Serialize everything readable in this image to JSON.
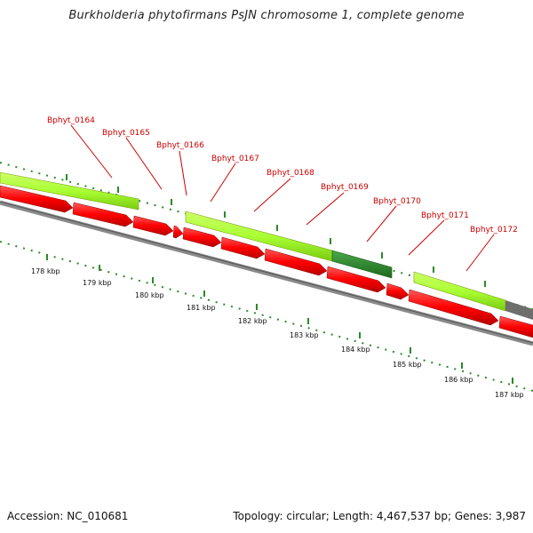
{
  "title": "Burkholderia phytofirmans PsJN chromosome 1, complete genome",
  "footer": {
    "accession_label": "Accession: NC_010681",
    "topology_label": "Topology: circular; Length: 4,467,537 bp; Genes: 3,987"
  },
  "colors": {
    "cds_feature": "#ff0000",
    "gene_feature": "#aaff33",
    "gene_feature_alt": "#2e8b2e",
    "gray_feature": "#6e6e6e",
    "backbone": "#8a8a8a",
    "tick": "#2a8a2a",
    "label": "#cc0000"
  },
  "genes": [
    {
      "name": "Bphyt_0164"
    },
    {
      "name": "Bphyt_0165"
    },
    {
      "name": "Bphyt_0166"
    },
    {
      "name": "Bphyt_0167"
    },
    {
      "name": "Bphyt_0168"
    },
    {
      "name": "Bphyt_0169"
    },
    {
      "name": "Bphyt_0170"
    },
    {
      "name": "Bphyt_0171"
    },
    {
      "name": "Bphyt_0172"
    }
  ],
  "kbp_labels": [
    "178 kbp",
    "179 kbp",
    "180 kbp",
    "181 kbp",
    "182 kbp",
    "183 kbp",
    "184 kbp",
    "185 kbp",
    "186 kbp",
    "187 kbp"
  ]
}
